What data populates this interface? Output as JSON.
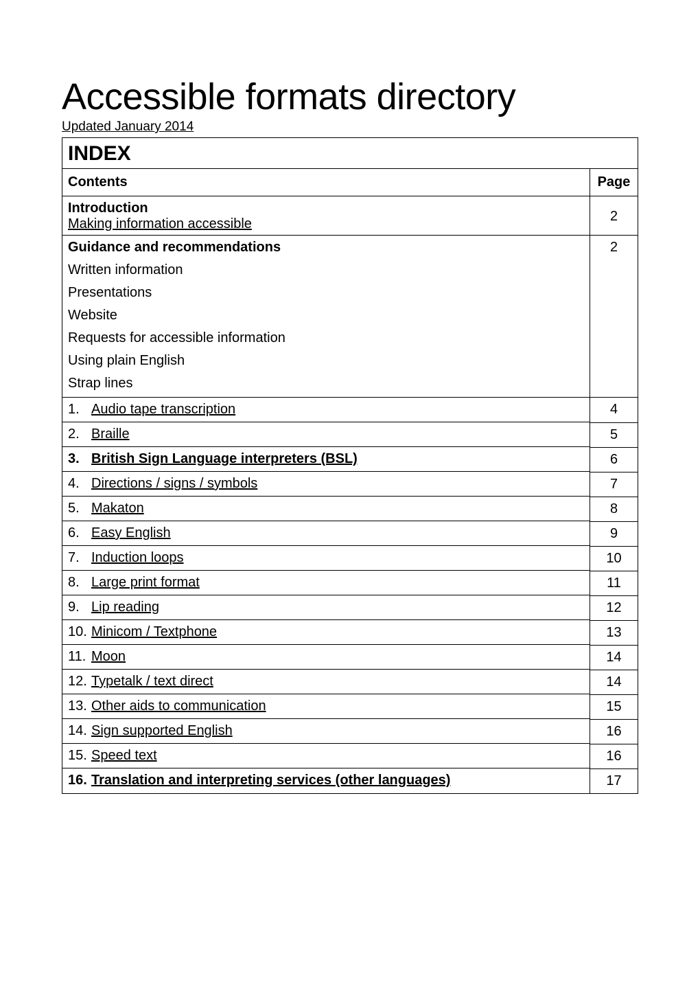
{
  "title": "Accessible formats directory",
  "updated": "Updated January 2014",
  "index_heading": "INDEX",
  "contents_label": "Contents",
  "page_label": "Page",
  "intro": {
    "heading": "Introduction",
    "sub": "Making information accessible",
    "page": "2"
  },
  "guidance": {
    "heading": "Guidance and recommendations",
    "items": [
      "Written information",
      "Presentations",
      "Website",
      "Requests for accessible information",
      "Using plain English",
      "Strap lines"
    ],
    "page": "2"
  },
  "toc": [
    {
      "num": "1.",
      "label": "Audio tape transcription",
      "page": "4",
      "bold": false
    },
    {
      "num": "2.",
      "label": "Braille",
      "page": "5",
      "bold": false
    },
    {
      "num": "3.",
      "label": "British Sign Language interpreters (BSL)",
      "page": "6",
      "bold": true
    },
    {
      "num": "4.",
      "label": "Directions / signs / symbols",
      "page": "7",
      "bold": false
    },
    {
      "num": "5.",
      "label": "Makaton",
      "page": "8",
      "bold": false
    },
    {
      "num": "6.",
      "label": "Easy English",
      "page": "9",
      "bold": false
    },
    {
      "num": "7.",
      "label": "Induction loops",
      "page": "10",
      "bold": false
    },
    {
      "num": "8.",
      "label": "Large print format",
      "page": "11",
      "bold": false
    },
    {
      "num": "9.",
      "label": "Lip reading",
      "page": "12",
      "bold": false
    },
    {
      "num": "10.",
      "label": "Minicom / Textphone",
      "page": "13",
      "bold": false
    },
    {
      "num": "11.",
      "label": "Moon",
      "page": "14",
      "bold": false
    },
    {
      "num": "12.",
      "label": "Typetalk / text direct",
      "page": "14",
      "bold": false
    },
    {
      "num": "13.",
      "label": "Other aids to communication",
      "page": "15",
      "bold": false
    },
    {
      "num": "14.",
      "label": "Sign supported English",
      "page": "16",
      "bold": false
    },
    {
      "num": "15.",
      "label": "Speed text",
      "page": "16",
      "bold": false
    },
    {
      "num": "16.",
      "label": "Translation and interpreting services (other languages)",
      "page": "17",
      "bold": true
    }
  ]
}
